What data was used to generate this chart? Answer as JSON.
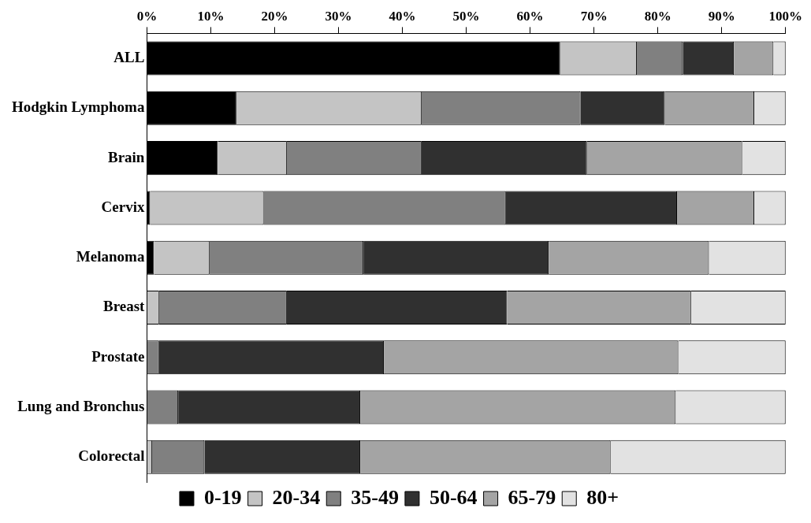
{
  "chart_data": {
    "type": "bar",
    "orientation": "horizontal",
    "stacked": true,
    "categories": [
      "ALL",
      "Hodgkin Lymphoma",
      "Brain",
      "Cervix",
      "Melanoma",
      "Breast",
      "Prostate",
      "Lung and Bronchus",
      "Colorectal"
    ],
    "series": [
      {
        "name": "0-19",
        "color": "#000000",
        "values": [
          64.7,
          14.0,
          11.1,
          0.5,
          1.1,
          0,
          0,
          0,
          0
        ]
      },
      {
        "name": "20-34",
        "color": "#c4c4c4",
        "values": [
          12.0,
          29.0,
          10.8,
          17.8,
          8.7,
          1.9,
          0,
          0,
          0.8
        ]
      },
      {
        "name": "35-49",
        "color": "#808080",
        "values": [
          7.2,
          24.9,
          21.1,
          37.9,
          24.1,
          20.0,
          1.9,
          4.9,
          8.2
        ]
      },
      {
        "name": "50-64",
        "color": "#303030",
        "values": [
          8.0,
          13.2,
          25.9,
          26.8,
          29.0,
          34.5,
          35.2,
          28.5,
          24.4
        ]
      },
      {
        "name": "65-79",
        "color": "#a4a4a4",
        "values": [
          6.2,
          14.0,
          24.3,
          12.1,
          25.1,
          28.8,
          46.1,
          49.4,
          39.2
        ]
      },
      {
        "name": "80+",
        "color": "#e2e2e2",
        "values": [
          1.9,
          4.9,
          6.8,
          4.9,
          12.0,
          14.8,
          16.8,
          17.2,
          27.4
        ]
      }
    ],
    "xlim": [
      0,
      100
    ],
    "xticks": [
      {
        "value": 0,
        "label": "0%"
      },
      {
        "value": 10,
        "label": "10%"
      },
      {
        "value": 20,
        "label": "20%"
      },
      {
        "value": 30,
        "label": "30%"
      },
      {
        "value": 40,
        "label": "40%"
      },
      {
        "value": 50,
        "label": "50%"
      },
      {
        "value": 60,
        "label": "60%"
      },
      {
        "value": 70,
        "label": "70%"
      },
      {
        "value": 80,
        "label": "80%"
      },
      {
        "value": 90,
        "label": "90%"
      },
      {
        "value": 100,
        "label": "100%"
      }
    ],
    "grid": false,
    "legend": "bottom"
  }
}
